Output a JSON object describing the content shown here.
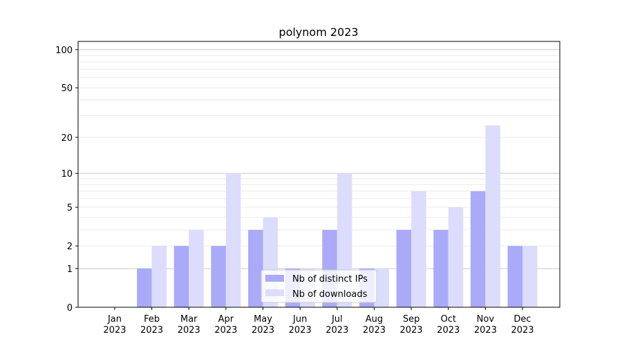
{
  "chart_data": {
    "type": "bar",
    "title": "polynom 2023",
    "xlabel": "",
    "ylabel": "",
    "yscale": "log10(1+y)",
    "ylim": [
      0,
      116
    ],
    "yticks": [
      0,
      1,
      2,
      5,
      10,
      20,
      50,
      100
    ],
    "grid": true,
    "legend_position": "lower-center",
    "categories": [
      "Jan\n2023",
      "Feb\n2023",
      "Mar\n2023",
      "Apr\n2023",
      "May\n2023",
      "Jun\n2023",
      "Jul\n2023",
      "Aug\n2023",
      "Sep\n2023",
      "Oct\n2023",
      "Nov\n2023",
      "Dec\n2023"
    ],
    "series": [
      {
        "name": "Nb of distinct IPs",
        "color": "#aaaaf8",
        "values": [
          0,
          1,
          2,
          2,
          3,
          1,
          3,
          1,
          3,
          3,
          7,
          2
        ]
      },
      {
        "name": "Nb of downloads",
        "color": "#dcdcfc",
        "values": [
          0,
          2,
          3,
          10,
          4,
          1,
          10,
          1,
          7,
          5,
          25,
          2
        ]
      }
    ]
  }
}
